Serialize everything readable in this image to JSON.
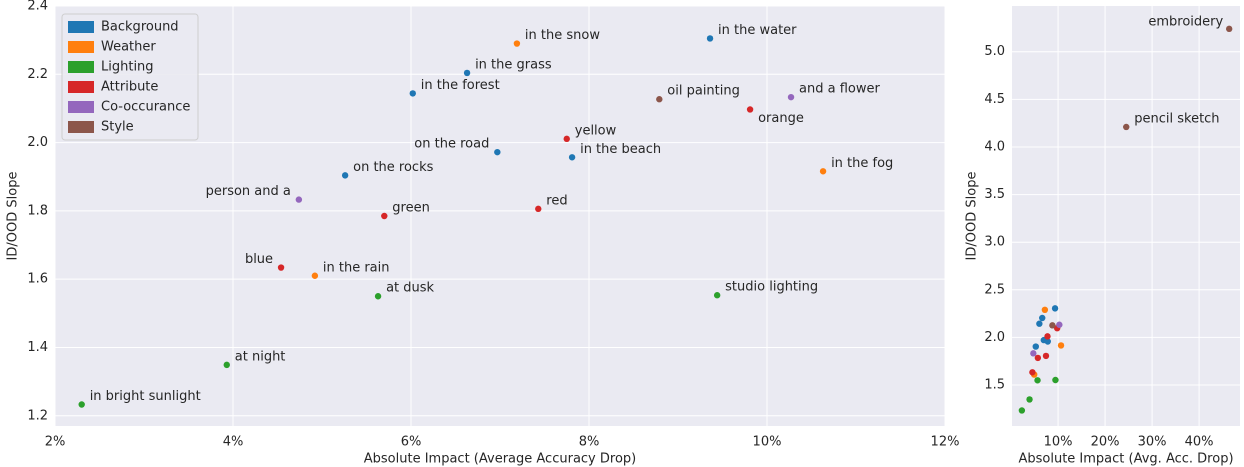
{
  "chart_data": [
    {
      "type": "scatter",
      "xlabel": "Absolute Impact (Average Accuracy Drop)",
      "ylabel": "ID/OOD Slope",
      "xlim": [
        2,
        12
      ],
      "ylim": [
        1.17,
        2.4
      ],
      "xticks": [
        {
          "value": 2,
          "label": "2%"
        },
        {
          "value": 4,
          "label": "4%"
        },
        {
          "value": 6,
          "label": "6%"
        },
        {
          "value": 8,
          "label": "8%"
        },
        {
          "value": 10,
          "label": "10%"
        },
        {
          "value": 12,
          "label": "12%"
        }
      ],
      "yticks": [
        1.2,
        1.4,
        1.6,
        1.8,
        {
          "value": 2,
          "label": "2.0"
        },
        2.2,
        2.4
      ],
      "grid": true,
      "legend": "upper left",
      "series": [
        {
          "name": "Background",
          "color": "#1f77b4",
          "x": [
            6.02,
            6.63,
            5.26,
            6.97,
            7.81,
            9.36
          ],
          "y": [
            2.144,
            2.204,
            1.904,
            1.972,
            1.957,
            2.305
          ],
          "labels": [
            "in the forest",
            "in the grass",
            "on the rocks",
            "on the road",
            "in the beach",
            "in the water"
          ]
        },
        {
          "name": "Weather",
          "color": "#ff7f0e",
          "x": [
            7.19,
            4.92,
            10.63
          ],
          "y": [
            2.29,
            1.61,
            1.916
          ],
          "labels": [
            "in the snow",
            "in the rain",
            "in the fog"
          ]
        },
        {
          "name": "Lighting",
          "color": "#2ca02c",
          "x": [
            2.3,
            3.93,
            5.63,
            9.44
          ],
          "y": [
            1.233,
            1.349,
            1.55,
            1.553
          ],
          "labels": [
            "in bright sunlight",
            "at night",
            "at dusk",
            "studio lighting"
          ]
        },
        {
          "name": "Attribute",
          "color": "#d62728",
          "x": [
            4.54,
            5.7,
            7.43,
            7.75,
            9.81
          ],
          "y": [
            1.634,
            1.785,
            1.806,
            2.011,
            2.097
          ],
          "labels": [
            "blue",
            "green",
            "red",
            "yellow",
            "orange"
          ]
        },
        {
          "name": "Co-occurance",
          "color": "#9467bd",
          "x": [
            4.74,
            10.27
          ],
          "y": [
            1.833,
            2.133
          ],
          "labels": [
            "person and a",
            "and a flower"
          ]
        },
        {
          "name": "Style",
          "color": "#8c564b",
          "x": [
            8.79
          ],
          "y": [
            2.127
          ],
          "labels": [
            "oil painting"
          ]
        }
      ]
    },
    {
      "type": "scatter",
      "xlabel": "Absolute Impact (Avg. Acc. Drop)",
      "ylabel": "ID/OOD Slope",
      "xlim": [
        0.2,
        48.7
      ],
      "ylim": [
        1.07,
        5.48
      ],
      "xticks": [
        {
          "value": 10,
          "label": "10%"
        },
        {
          "value": 20,
          "label": "20%"
        },
        {
          "value": 30,
          "label": "30%"
        },
        {
          "value": 40,
          "label": "40%"
        }
      ],
      "yticks": [
        1.5,
        {
          "value": 2,
          "label": "2.0"
        },
        2.5,
        {
          "value": 3,
          "label": "3.0"
        },
        3.5,
        {
          "value": 4,
          "label": "4.0"
        },
        4.5,
        {
          "value": 5,
          "label": "5.0"
        }
      ],
      "grid": true,
      "series": [
        {
          "color": "#1f77b4",
          "x": [
            6.02,
            6.63,
            5.26,
            6.97,
            7.81,
            9.36
          ],
          "y": [
            2.144,
            2.204,
            1.904,
            1.972,
            1.957,
            2.305
          ]
        },
        {
          "color": "#ff7f0e",
          "x": [
            7.19,
            4.92,
            10.63
          ],
          "y": [
            2.29,
            1.61,
            1.916
          ]
        },
        {
          "color": "#2ca02c",
          "x": [
            2.3,
            3.93,
            5.63,
            9.44
          ],
          "y": [
            1.233,
            1.349,
            1.55,
            1.553
          ]
        },
        {
          "color": "#d62728",
          "x": [
            4.54,
            5.7,
            7.43,
            7.75,
            9.81
          ],
          "y": [
            1.634,
            1.785,
            1.806,
            2.011,
            2.097
          ]
        },
        {
          "color": "#9467bd",
          "x": [
            4.74,
            10.27
          ],
          "y": [
            1.833,
            2.133
          ]
        },
        {
          "color": "#8c564b",
          "x": [
            8.79,
            24.5,
            46.4
          ],
          "y": [
            2.127,
            4.21,
            5.24
          ],
          "labels": [
            null,
            "pencil sketch",
            "embroidery"
          ]
        }
      ]
    }
  ]
}
